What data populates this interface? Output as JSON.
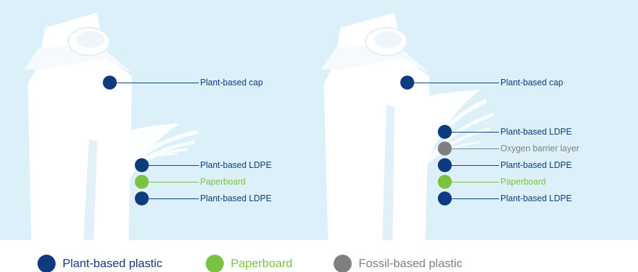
{
  "colors": {
    "plant": "#0e3a7e",
    "paper": "#7cc242",
    "fossil": "#7f7f7f",
    "background": "#dcf0fa",
    "carton": "#ffffff"
  },
  "left_carton": {
    "labels": {
      "cap": "Plant-based cap",
      "outer_ldpe": "Plant-based LDPE",
      "paperboard": "Paperboard",
      "inner_ldpe": "Plant-based LDPE"
    }
  },
  "right_carton": {
    "labels": {
      "cap": "Plant-based cap",
      "ldpe_1": "Plant-based LDPE",
      "oxygen_barrier": "Oxygen barrier layer",
      "ldpe_2": "Plant-based LDPE",
      "paperboard": "Paperboard",
      "ldpe_3": "Plant-based LDPE"
    }
  },
  "legend": {
    "plant": "Plant-based plastic",
    "paper": "Paperboard",
    "fossil": "Fossil-based plastic"
  }
}
